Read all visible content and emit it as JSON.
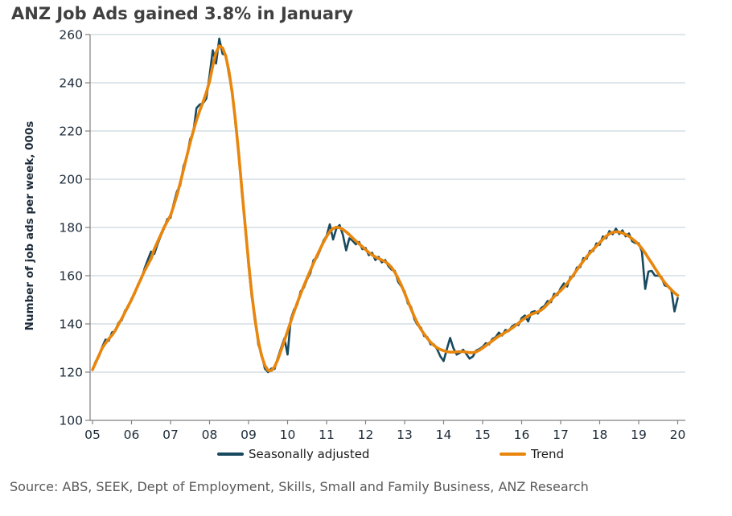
{
  "page": {
    "title": "ANZ Job Ads gained 3.8% in January",
    "source": "Source: ABS, SEEK, Dept of Employment, Skills, Small and Family Business, ANZ Research"
  },
  "colors": {
    "title_text": "#404040",
    "tick_text": "#1C2B39",
    "legend_text": "#1A1A1A",
    "source_text": "#595959",
    "grid_line": "#C9D7DF",
    "axis_line": "#808080",
    "sa_line": "#17495F",
    "trend_line": "#E8860D"
  },
  "chart_data": {
    "type": "line",
    "title": "ANZ Job Ads gained 3.8% in January",
    "xlabel": "",
    "ylabel": "Number of job ads per week, 000s",
    "ylim": [
      100,
      262
    ],
    "grid": "horizontal",
    "legend_position": "bottom",
    "frequency": "monthly",
    "x_start": "2005-01",
    "x_end": "2020-01",
    "x_tick_labels": [
      "05",
      "06",
      "07",
      "08",
      "09",
      "10",
      "11",
      "12",
      "13",
      "14",
      "15",
      "16",
      "17",
      "18",
      "19",
      "20"
    ],
    "y_tick_labels": [
      100,
      120,
      140,
      160,
      180,
      200,
      220,
      240,
      260
    ],
    "series": [
      {
        "name": "Seasonally adjusted",
        "color": "#17495F",
        "values": [
          121,
          124.5,
          126.5,
          130.5,
          133.5,
          133,
          136.5,
          137,
          140.5,
          141.5,
          145.5,
          147,
          150.5,
          152.5,
          156.5,
          158.5,
          163,
          166.5,
          170,
          169,
          173,
          176.5,
          179.5,
          183.5,
          184,
          190,
          195,
          197.5,
          205.5,
          209,
          216.5,
          219.5,
          229.5,
          231,
          231.5,
          233.5,
          243,
          253.5,
          248,
          258.3,
          252,
          251.5,
          243,
          236.5,
          222.5,
          211,
          193.5,
          181,
          164,
          151,
          143,
          131.5,
          127.5,
          121.5,
          120,
          121.5,
          121.3,
          126,
          130,
          134,
          127.3,
          142,
          146,
          148,
          153.5,
          155,
          158.5,
          161,
          166.5,
          167.5,
          170.5,
          174.5,
          176.5,
          181.3,
          175,
          179.5,
          181,
          177,
          170.5,
          175.5,
          174.5,
          173,
          174,
          171,
          171.5,
          168.5,
          169.5,
          166.5,
          167.8,
          165.5,
          166.5,
          164,
          162.5,
          162,
          157.5,
          155.5,
          153.5,
          148.5,
          147,
          142,
          139.5,
          138.5,
          135,
          134.5,
          131.5,
          131.5,
          129.5,
          126.5,
          124.6,
          129.5,
          134.2,
          130,
          127.3,
          128,
          129.3,
          127.5,
          125.6,
          126.5,
          128.9,
          129.6,
          130.5,
          132,
          131.5,
          133.8,
          134.5,
          136.4,
          135.2,
          137.5,
          137,
          138.9,
          139.8,
          139.5,
          142.4,
          143.5,
          141,
          144.8,
          145.3,
          144.3,
          146.6,
          147.4,
          149.5,
          149,
          152.5,
          152,
          154.8,
          156.8,
          155.5,
          159.5,
          159.8,
          163.4,
          163.5,
          167.3,
          167,
          170.3,
          170.2,
          173.4,
          172.8,
          176.3,
          175.5,
          178.5,
          177.2,
          179.5,
          177.3,
          178.8,
          176.3,
          177.5,
          174.3,
          173.5,
          173.5,
          170,
          154.5,
          161.7,
          162,
          160,
          160,
          159.5,
          156,
          155.5,
          154.5,
          145.2,
          150.7
        ]
      },
      {
        "name": "Trend",
        "color": "#E8860D",
        "values": [
          121,
          124,
          127,
          130,
          132,
          133.8,
          135.3,
          137.3,
          139.8,
          142.2,
          144.8,
          147.5,
          150,
          153,
          156,
          159,
          162,
          164.5,
          167,
          171,
          174,
          177,
          180,
          182.5,
          185,
          189,
          193.5,
          198.5,
          204,
          209.5,
          215,
          220,
          224.5,
          228.5,
          232,
          236,
          240.5,
          247,
          252.5,
          255.3,
          254.5,
          251,
          244.5,
          235.5,
          224,
          210,
          195,
          180,
          165.5,
          152.5,
          141.5,
          133,
          126.8,
          122.8,
          120.7,
          120.6,
          122.2,
          125.2,
          129,
          133,
          137,
          141,
          145,
          148.8,
          152.4,
          155.8,
          159,
          162.2,
          165.2,
          168.2,
          171,
          173.8,
          176.2,
          178.3,
          179.6,
          180.1,
          179.9,
          179.2,
          178.2,
          177,
          175.7,
          174.4,
          173.2,
          172,
          170.8,
          169.6,
          168.6,
          167.8,
          167.1,
          166.5,
          165.8,
          164.8,
          163.4,
          161.4,
          158.9,
          156,
          152.8,
          149.5,
          146.2,
          143,
          140.2,
          137.8,
          135.8,
          134,
          132.4,
          131.1,
          130.1,
          129.4,
          128.9,
          128.5,
          128.3,
          128.3,
          128.4,
          128.5,
          128.5,
          128.3,
          128.1,
          128.1,
          128.4,
          129.1,
          130,
          131,
          132,
          133,
          134,
          134.9,
          135.7,
          136.5,
          137.3,
          138.2,
          139.2,
          140.3,
          141.4,
          142.4,
          143.3,
          144,
          144.5,
          145,
          145.7,
          146.8,
          148.2,
          149.8,
          151.3,
          152.6,
          153.8,
          155.2,
          156.8,
          158.6,
          160.5,
          162.4,
          164.3,
          166.1,
          167.8,
          169.4,
          170.9,
          172.3,
          173.7,
          175.1,
          176.4,
          177.4,
          178,
          178.2,
          178.1,
          177.7,
          177.1,
          176.3,
          175.3,
          174.2,
          172.9,
          171.3,
          169.4,
          167.3,
          165.2,
          163.1,
          161,
          159,
          157.2,
          155.6,
          154.2,
          152.9,
          151.8
        ]
      }
    ]
  }
}
